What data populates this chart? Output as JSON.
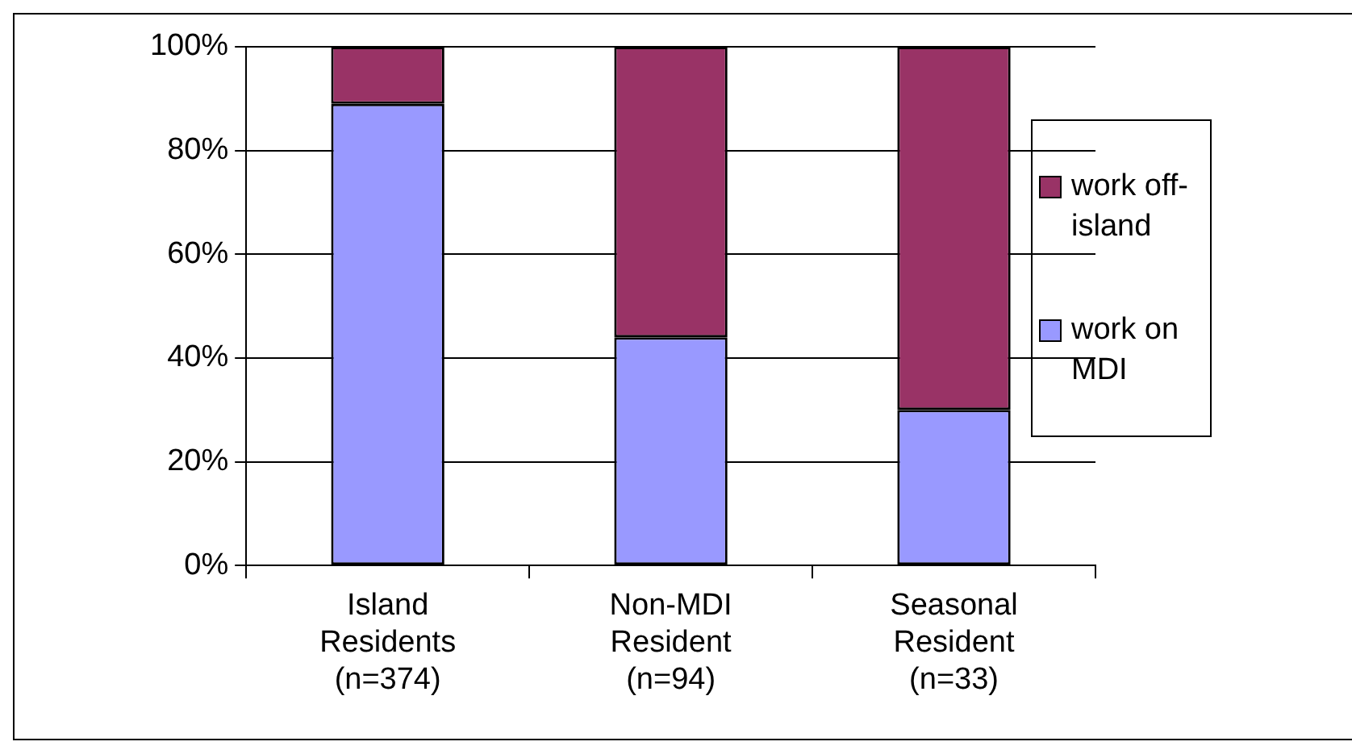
{
  "chart_data": {
    "type": "bar",
    "stacked": true,
    "categories": [
      "Island Residents (n=374)",
      "Non-MDI Resident (n=94)",
      "Seasonal Resident (n=33)"
    ],
    "series": [
      {
        "name": "work on MDI",
        "color": "#9999ff",
        "values": [
          89,
          44,
          30
        ]
      },
      {
        "name": "work off-island",
        "color": "#993366",
        "values": [
          11,
          56,
          70
        ]
      }
    ],
    "ylim": [
      0,
      100
    ],
    "yticks": [
      {
        "value": 0,
        "label": "0%"
      },
      {
        "value": 20,
        "label": "20%"
      },
      {
        "value": 40,
        "label": "40%"
      },
      {
        "value": 60,
        "label": "60%"
      },
      {
        "value": 80,
        "label": "80%"
      },
      {
        "value": 100,
        "label": "100%"
      }
    ],
    "grid": "y",
    "legend": "right"
  }
}
